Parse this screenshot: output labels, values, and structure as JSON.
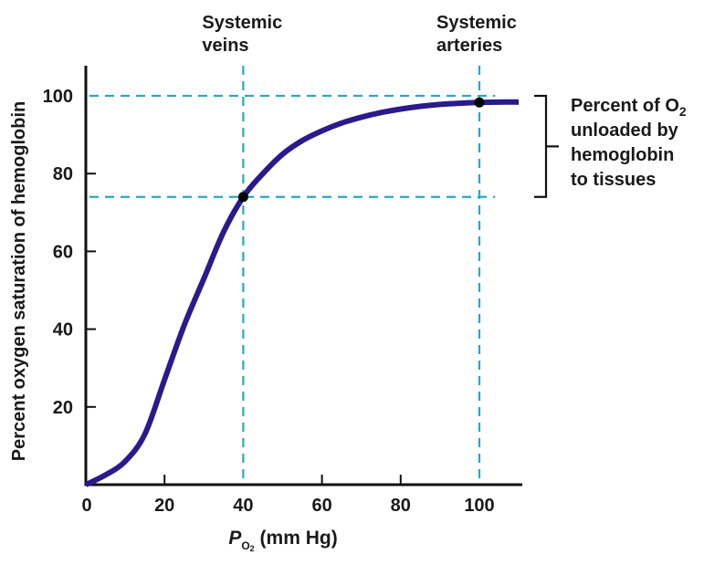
{
  "chart_data": {
    "type": "line",
    "title": "",
    "xlabel": {
      "italic_symbol": "P",
      "subscript": "O",
      "subscript_digit": "2",
      "rest": " (mm Hg)"
    },
    "xlabel_text": "PO2 (mm Hg)",
    "ylabel": "Percent oxygen saturation of hemoglobin",
    "xlim": [
      0,
      110
    ],
    "ylim": [
      0,
      107
    ],
    "x_ticks": [
      0,
      20,
      40,
      60,
      80,
      100
    ],
    "x_tick_labels": [
      "0",
      "20",
      "40",
      "60",
      "80",
      "100"
    ],
    "y_ticks": [
      20,
      40,
      60,
      80,
      100
    ],
    "y_tick_labels": [
      "20",
      "40",
      "60",
      "80",
      "100"
    ],
    "grid": false,
    "legend": "none",
    "series": [
      {
        "name": "Oxygen-hemoglobin dissociation curve",
        "color": "#2a1a8c",
        "x": [
          0,
          5,
          10,
          15,
          20,
          25,
          30,
          35,
          40,
          45,
          50,
          55,
          60,
          65,
          70,
          75,
          80,
          85,
          90,
          95,
          100,
          105,
          110
        ],
        "y": [
          0,
          2.5,
          6,
          13,
          27,
          41,
          53,
          65,
          74,
          80,
          85,
          88.5,
          91,
          93,
          94.5,
          95.7,
          96.6,
          97.3,
          97.8,
          98.1,
          98.3,
          98.4,
          98.4
        ]
      }
    ],
    "markers": [
      {
        "name": "systemic-veins-point",
        "x": 40,
        "y": 74,
        "color": "#000000"
      },
      {
        "name": "systemic-arteries-point",
        "x": 100,
        "y": 98.3,
        "color": "#000000"
      }
    ],
    "reference_lines": {
      "color": "#2aa7c4",
      "vertical": [
        {
          "x": 40,
          "label_lines": [
            "Systemic",
            "veins"
          ]
        },
        {
          "x": 100,
          "label_lines": [
            "Systemic",
            "arteries"
          ]
        }
      ],
      "horizontal": [
        {
          "y": 100
        },
        {
          "y": 74
        }
      ]
    },
    "annotations": [
      {
        "type": "bracket",
        "y_range": [
          74,
          100
        ],
        "text_lines": [
          {
            "main": "Percent of O",
            "sub": "2"
          },
          {
            "main": "unloaded by",
            "sub": ""
          },
          {
            "main": "hemoglobin",
            "sub": ""
          },
          {
            "main": "to tissues",
            "sub": ""
          }
        ]
      }
    ]
  }
}
